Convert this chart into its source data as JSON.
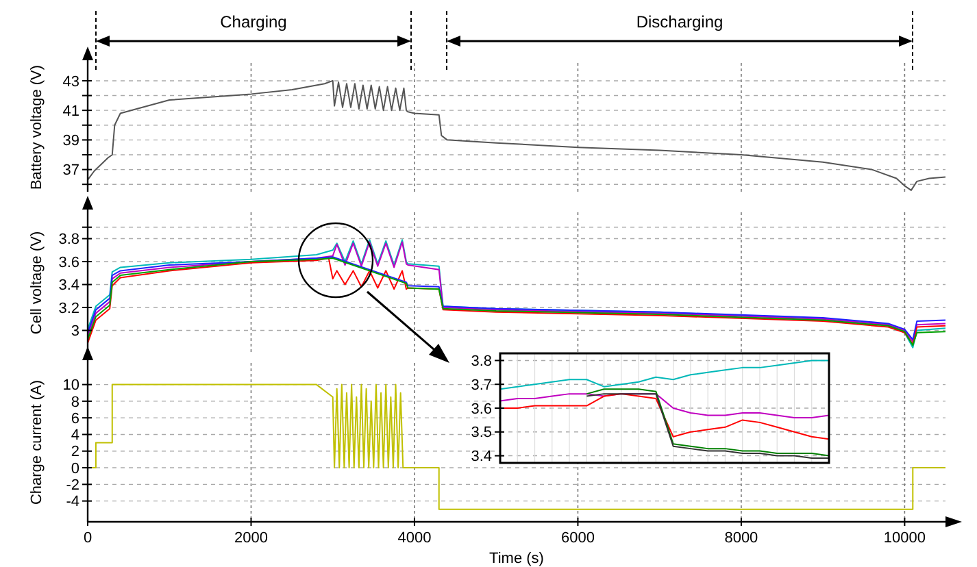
{
  "chart_data": [
    {
      "type": "line",
      "ylabel": "Battery voltage (V)",
      "xlim": [
        0,
        10500
      ],
      "xticks": [
        0,
        2000,
        4000,
        6000,
        8000,
        10000
      ],
      "ylim": [
        35.5,
        44.2
      ],
      "yticks": [
        {
          "value": 36,
          "label": null
        },
        37,
        {
          "value": 38,
          "label": null
        },
        39,
        {
          "value": 40,
          "label": null
        },
        41,
        {
          "value": 42,
          "label": null
        },
        43
      ],
      "grid": true,
      "tick_labels": "y",
      "marker": "none",
      "line_style": "solid",
      "annotations": [
        "Charging",
        "Discharging"
      ],
      "series": [
        {
          "color": "#555555",
          "x": [
            0,
            80,
            250,
            300,
            330,
            400,
            600,
            1000,
            1500,
            2000,
            2500,
            2900,
            3000,
            3020,
            3070,
            3120,
            3170,
            3220,
            3270,
            3320,
            3370,
            3420,
            3470,
            3520,
            3570,
            3620,
            3670,
            3720,
            3770,
            3820,
            3870,
            3900,
            3920,
            4000,
            4300,
            4330,
            4400,
            5000,
            6000,
            7000,
            8000,
            9000,
            9600,
            9900,
            10000,
            10080,
            10150,
            10300,
            10500
          ],
          "values": [
            36.3,
            36.9,
            37.8,
            38.0,
            40.0,
            40.8,
            41.1,
            41.7,
            41.9,
            42.1,
            42.4,
            42.8,
            43.0,
            41.3,
            42.9,
            41.2,
            42.8,
            41.2,
            42.8,
            41.1,
            42.7,
            41.1,
            42.7,
            41.1,
            42.6,
            41.0,
            42.6,
            41.0,
            42.5,
            41.0,
            42.5,
            41.0,
            40.9,
            40.8,
            40.7,
            39.3,
            39.0,
            38.8,
            38.5,
            38.3,
            38.0,
            37.5,
            37.0,
            36.4,
            35.9,
            35.6,
            36.2,
            36.4,
            36.5
          ]
        }
      ]
    },
    {
      "type": "line",
      "ylabel": "Cell voltage (V)",
      "xlim": [
        0,
        10500
      ],
      "xticks": [
        0,
        2000,
        4000,
        6000,
        8000,
        10000
      ],
      "ylim": [
        2.8,
        4.03
      ],
      "yticks": [
        3.0,
        3.2,
        3.4,
        3.6,
        3.8,
        {
          "value": 3.9,
          "label": null
        }
      ],
      "grid": true,
      "tick_labels": "y",
      "marker": "none",
      "line_style": "solid",
      "series": [
        {
          "color": "#00b8b8",
          "x": [
            0,
            100,
            270,
            300,
            400,
            1000,
            2000,
            2800,
            3000,
            3050,
            3150,
            3250,
            3350,
            3450,
            3550,
            3650,
            3750,
            3850,
            3900,
            3920,
            4300,
            4350,
            5000,
            7000,
            9000,
            9800,
            10000,
            10100,
            10150,
            10500
          ],
          "values": [
            3.01,
            3.21,
            3.31,
            3.51,
            3.55,
            3.59,
            3.62,
            3.66,
            3.7,
            3.76,
            3.6,
            3.78,
            3.58,
            3.79,
            3.58,
            3.78,
            3.57,
            3.79,
            3.6,
            3.58,
            3.56,
            3.21,
            3.19,
            3.16,
            3.1,
            3.05,
            2.98,
            2.85,
            3.0,
            3.02
          ]
        },
        {
          "color": "#c000c0",
          "x": [
            0,
            100,
            270,
            300,
            400,
            1000,
            2000,
            2800,
            3000,
            3050,
            3150,
            3250,
            3350,
            3450,
            3550,
            3650,
            3750,
            3850,
            3900,
            3920,
            4300,
            4350,
            5000,
            7000,
            9000,
            9800,
            10000,
            10100,
            10150,
            10500
          ],
          "values": [
            2.95,
            3.15,
            3.25,
            3.45,
            3.5,
            3.55,
            3.6,
            3.63,
            3.65,
            3.75,
            3.57,
            3.76,
            3.56,
            3.77,
            3.56,
            3.76,
            3.55,
            3.77,
            3.58,
            3.57,
            3.53,
            3.2,
            3.18,
            3.15,
            3.1,
            3.05,
            3.0,
            2.9,
            3.05,
            3.06
          ]
        },
        {
          "color": "#ff0000",
          "x": [
            0,
            100,
            270,
            300,
            400,
            1000,
            2000,
            2800,
            2950,
            3000,
            3050,
            3150,
            3250,
            3350,
            3450,
            3550,
            3650,
            3750,
            3850,
            3900,
            3920,
            4300,
            4350,
            5000,
            7000,
            9000,
            9800,
            10000,
            10100,
            10150,
            10500
          ],
          "values": [
            2.89,
            3.09,
            3.19,
            3.39,
            3.46,
            3.52,
            3.59,
            3.61,
            3.63,
            3.45,
            3.52,
            3.4,
            3.52,
            3.38,
            3.52,
            3.37,
            3.52,
            3.36,
            3.52,
            3.36,
            3.37,
            3.36,
            3.18,
            3.16,
            3.13,
            3.08,
            3.03,
            2.98,
            2.88,
            3.03,
            3.04
          ]
        },
        {
          "color": "#2020ff",
          "x": [
            0,
            100,
            270,
            300,
            400,
            1000,
            2000,
            2800,
            3000,
            3900,
            3920,
            4300,
            4350,
            5000,
            7000,
            9000,
            9800,
            10000,
            10100,
            10150,
            10500
          ],
          "values": [
            2.98,
            3.18,
            3.28,
            3.48,
            3.52,
            3.57,
            3.6,
            3.63,
            3.64,
            3.42,
            3.39,
            3.38,
            3.21,
            3.19,
            3.16,
            3.11,
            3.06,
            3.01,
            2.92,
            3.08,
            3.09
          ]
        },
        {
          "color": "#00a000",
          "x": [
            0,
            100,
            270,
            300,
            400,
            1000,
            2000,
            2800,
            3000,
            3900,
            3920,
            4300,
            4350,
            5000,
            7000,
            9000,
            9800,
            10000,
            10100,
            10150,
            10500
          ],
          "values": [
            2.92,
            3.12,
            3.22,
            3.42,
            3.48,
            3.53,
            3.6,
            3.62,
            3.63,
            3.41,
            3.37,
            3.36,
            3.19,
            3.17,
            3.14,
            3.09,
            3.04,
            2.99,
            2.87,
            2.98,
            2.99
          ]
        }
      ]
    },
    {
      "type": "line",
      "xlabel": "Time (s)",
      "ylabel": "Charge current (A)",
      "xlim": [
        0,
        10500
      ],
      "xticks": [
        0,
        2000,
        4000,
        6000,
        8000,
        10000
      ],
      "ylim": [
        -6.5,
        12.6
      ],
      "yticks": [
        -4,
        -2,
        0,
        2,
        4,
        6,
        8,
        10
      ],
      "grid": true,
      "marker": "none",
      "line_style": "solid",
      "series": [
        {
          "color": "#c0c000",
          "x": [
            0,
            100,
            100,
            300,
            300,
            2800,
            3000,
            3020,
            3050,
            3080,
            3110,
            3140,
            3170,
            3200,
            3230,
            3260,
            3290,
            3320,
            3350,
            3380,
            3410,
            3440,
            3470,
            3500,
            3530,
            3560,
            3590,
            3620,
            3650,
            3680,
            3710,
            3740,
            3770,
            3800,
            3830,
            3860,
            3900,
            4300,
            4300,
            10100,
            10100,
            10500
          ],
          "values": [
            0,
            0,
            3,
            3,
            10,
            10,
            8.5,
            0,
            9.5,
            0,
            10,
            0,
            9,
            0,
            10,
            0,
            8.5,
            0,
            10,
            0,
            9.5,
            0,
            8,
            0,
            10,
            0,
            9,
            0,
            10,
            0,
            8.5,
            0,
            10,
            0,
            9,
            0,
            0,
            0,
            -5,
            -5,
            0,
            0
          ]
        }
      ]
    },
    {
      "type": "line",
      "categories": [
        null,
        null,
        null,
        null,
        null,
        null,
        null,
        null,
        null,
        null,
        null,
        null,
        null,
        null,
        null,
        null,
        null,
        null,
        null,
        null
      ],
      "ylim": [
        3.37,
        3.83
      ],
      "yticks": [
        3.4,
        3.5,
        3.6,
        3.7,
        3.8
      ],
      "grid": true,
      "tick_labels": "y",
      "marker": "none",
      "line_style": "solid",
      "series": [
        {
          "color": "#00b8b8",
          "values": [
            3.68,
            3.69,
            3.7,
            3.71,
            3.72,
            3.72,
            3.69,
            3.7,
            3.71,
            3.73,
            3.72,
            3.74,
            3.75,
            3.76,
            3.77,
            3.77,
            3.78,
            3.79,
            3.8,
            3.8
          ]
        },
        {
          "color": "#c000c0",
          "values": [
            3.63,
            3.64,
            3.64,
            3.65,
            3.66,
            3.66,
            3.65,
            3.66,
            3.66,
            3.66,
            3.6,
            3.58,
            3.57,
            3.57,
            3.58,
            3.58,
            3.57,
            3.56,
            3.56,
            3.57
          ]
        },
        {
          "color": "#ff0000",
          "values": [
            3.6,
            3.6,
            3.61,
            3.61,
            3.61,
            3.61,
            3.65,
            3.66,
            3.65,
            3.64,
            3.48,
            3.5,
            3.51,
            3.52,
            3.55,
            3.54,
            3.52,
            3.5,
            3.48,
            3.47
          ]
        },
        {
          "color": "#008000",
          "values": [
            null,
            null,
            null,
            null,
            null,
            3.66,
            3.68,
            3.68,
            3.68,
            3.67,
            3.45,
            3.44,
            3.43,
            3.43,
            3.42,
            3.42,
            3.41,
            3.41,
            3.41,
            3.4
          ]
        },
        {
          "color": "#333333",
          "values": [
            null,
            null,
            null,
            null,
            null,
            3.65,
            3.66,
            3.66,
            3.66,
            3.66,
            3.44,
            3.43,
            3.42,
            3.42,
            3.41,
            3.41,
            3.4,
            3.4,
            3.39,
            3.39
          ]
        }
      ]
    }
  ]
}
